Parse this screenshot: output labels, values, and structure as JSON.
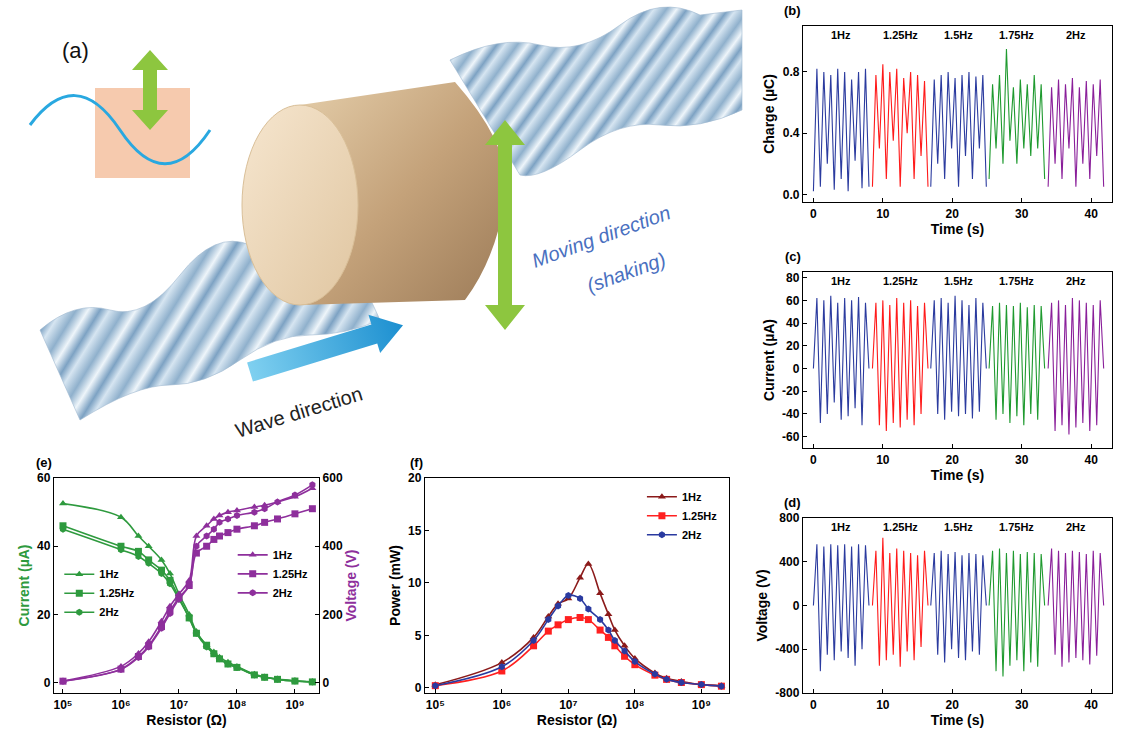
{
  "diagram": {
    "panel": "(a)",
    "moving_label": [
      "Moving direction",
      "(shaking)"
    ],
    "wave_label": "Wave direction"
  },
  "chart_data": [
    {
      "panel": "(b)",
      "type": "line",
      "x_label": "Time (s)",
      "y_label": "Charge (µC)",
      "grid": false,
      "xlim": [
        -1.5,
        43
      ],
      "xticks": [
        0,
        10,
        20,
        30,
        40
      ],
      "ylim": [
        -0.05,
        1.1
      ],
      "yticks": [
        {
          "value": 0,
          "label": "0.0"
        },
        0.4,
        0.8
      ],
      "series": [
        {
          "name": "1Hz",
          "color": "#2b3b9f",
          "x": [
            0,
            0.5,
            1,
            1.5,
            2,
            2.5,
            3,
            3.5,
            4,
            4.5,
            5,
            5.5,
            6,
            6.5,
            7,
            7.5,
            8
          ],
          "values": [
            0.02,
            0.82,
            0.05,
            0.8,
            0.2,
            0.78,
            0.03,
            0.82,
            0.1,
            0.8,
            0.02,
            0.75,
            0.22,
            0.8,
            0.04,
            0.82,
            0.05
          ]
        },
        {
          "name": "1.25Hz",
          "color": "#ff1a1a",
          "x": [
            8.5,
            9,
            9.5,
            10,
            10.5,
            11,
            11.5,
            12,
            12.5,
            13,
            13.5,
            14,
            14.5,
            15,
            15.5,
            16,
            16.5
          ],
          "values": [
            0.05,
            0.78,
            0.3,
            0.85,
            0.1,
            0.8,
            0.35,
            0.82,
            0.05,
            0.76,
            0.4,
            0.8,
            0.1,
            0.78,
            0.25,
            0.74,
            0.05
          ]
        },
        {
          "name": "1.5Hz",
          "color": "#2b3b9f",
          "x": [
            16.9,
            17.4,
            17.9,
            18.4,
            18.9,
            19.4,
            19.9,
            20.4,
            20.9,
            21.4,
            21.9,
            22.4,
            22.9,
            23.4,
            23.9,
            24.4,
            24.9
          ],
          "values": [
            0.05,
            0.75,
            0.2,
            0.78,
            0.1,
            0.8,
            0.3,
            0.76,
            0.05,
            0.78,
            0.25,
            0.8,
            0.1,
            0.77,
            0.3,
            0.78,
            0.05
          ]
        },
        {
          "name": "1.75Hz",
          "color": "#1f9a2f",
          "x": [
            25.3,
            25.8,
            26.3,
            26.8,
            27.3,
            27.8,
            28.3,
            28.8,
            29.3,
            29.8,
            30.3,
            30.8,
            31.3,
            31.8,
            32.3,
            32.8,
            33.3
          ],
          "values": [
            0.1,
            0.72,
            0.3,
            0.78,
            0.2,
            0.95,
            0.35,
            0.7,
            0.2,
            0.75,
            0.3,
            0.72,
            0.25,
            0.78,
            0.3,
            0.72,
            0.1
          ]
        },
        {
          "name": "2Hz",
          "color": "#8a1f9a",
          "x": [
            33.8,
            34.3,
            34.8,
            35.3,
            35.8,
            36.3,
            36.8,
            37.3,
            37.8,
            38.3,
            38.8,
            39.3,
            39.8,
            40.3,
            40.8,
            41.3,
            41.8
          ],
          "values": [
            0.05,
            0.7,
            0.2,
            0.75,
            0.1,
            0.72,
            0.3,
            0.76,
            0.05,
            0.7,
            0.2,
            0.74,
            0.1,
            0.72,
            0.25,
            0.75,
            0.05
          ]
        }
      ]
    },
    {
      "panel": "(c)",
      "type": "line",
      "x_label": "Time (s)",
      "y_label": "Current (µA)",
      "grid": false,
      "xlim": [
        -1.5,
        43
      ],
      "xticks": [
        0,
        10,
        20,
        30,
        40
      ],
      "ylim": [
        -70,
        85
      ],
      "yticks": [
        -60,
        -40,
        -20,
        0,
        20,
        40,
        60,
        80
      ],
      "series": [
        {
          "name": "1Hz",
          "color": "#2b3b9f",
          "x": [
            0,
            0.5,
            1,
            1.5,
            2,
            2.5,
            3,
            3.5,
            4,
            4.5,
            5,
            5.5,
            6,
            6.5,
            7,
            7.5,
            8
          ],
          "values": [
            0,
            62,
            -48,
            60,
            -40,
            64,
            -30,
            58,
            -45,
            62,
            -42,
            60,
            -35,
            63,
            -50,
            58,
            0
          ]
        },
        {
          "name": "1.25Hz",
          "color": "#ff1a1a",
          "x": [
            8.5,
            9,
            9.5,
            10,
            10.5,
            11,
            11.5,
            12,
            12.5,
            13,
            13.5,
            14,
            14.5,
            15,
            15.5,
            16,
            16.5
          ],
          "values": [
            0,
            58,
            -50,
            60,
            -55,
            56,
            -48,
            62,
            -52,
            58,
            -45,
            60,
            -50,
            55,
            -40,
            58,
            0
          ]
        },
        {
          "name": "1.5Hz",
          "color": "#2b3b9f",
          "x": [
            16.9,
            17.4,
            17.9,
            18.4,
            18.9,
            19.4,
            19.9,
            20.4,
            20.9,
            21.4,
            21.9,
            22.4,
            22.9,
            23.4,
            23.9,
            24.4,
            24.9
          ],
          "values": [
            0,
            60,
            -40,
            62,
            -45,
            58,
            -38,
            64,
            -42,
            60,
            -40,
            56,
            -44,
            62,
            -38,
            58,
            0
          ]
        },
        {
          "name": "1.75Hz",
          "color": "#1f9a2f",
          "x": [
            25.3,
            25.8,
            26.3,
            26.8,
            27.3,
            27.8,
            28.3,
            28.8,
            29.3,
            29.8,
            30.3,
            30.8,
            31.3,
            31.8,
            32.3,
            32.8,
            33.3
          ],
          "values": [
            0,
            55,
            -45,
            58,
            -40,
            56,
            -48,
            55,
            -42,
            58,
            -50,
            54,
            -40,
            56,
            -45,
            55,
            0
          ]
        },
        {
          "name": "2Hz",
          "color": "#8a1f9a",
          "x": [
            33.8,
            34.3,
            34.8,
            35.3,
            35.8,
            36.3,
            36.8,
            37.3,
            37.8,
            38.3,
            38.8,
            39.3,
            39.8,
            40.3,
            40.8,
            41.3,
            41.8
          ],
          "values": [
            0,
            58,
            -55,
            60,
            -50,
            56,
            -58,
            62,
            -52,
            60,
            -48,
            58,
            -55,
            56,
            -50,
            60,
            0
          ]
        }
      ]
    },
    {
      "panel": "(d)",
      "type": "line",
      "x_label": "Time (s)",
      "y_label": "Voltage (V)",
      "grid": false,
      "xlim": [
        -1.5,
        43
      ],
      "xticks": [
        0,
        10,
        20,
        30,
        40
      ],
      "ylim": [
        -800,
        800
      ],
      "yticks": [
        -800,
        -400,
        0,
        400,
        800
      ],
      "series": [
        {
          "name": "1Hz",
          "color": "#2b3b9f",
          "x": [
            0,
            0.5,
            1,
            1.5,
            2,
            2.5,
            3,
            3.5,
            4,
            4.5,
            5,
            5.5,
            6,
            6.5,
            7,
            7.5,
            8
          ],
          "values": [
            0,
            560,
            -600,
            540,
            -450,
            560,
            -500,
            550,
            -420,
            560,
            -480,
            540,
            -550,
            560,
            -400,
            550,
            0
          ]
        },
        {
          "name": "1.25Hz",
          "color": "#ff1a1a",
          "x": [
            8.5,
            9,
            9.5,
            10,
            10.5,
            11,
            11.5,
            12,
            12.5,
            13,
            13.5,
            14,
            14.5,
            15,
            15.5,
            16,
            16.5
          ],
          "values": [
            0,
            500,
            -550,
            620,
            -500,
            480,
            -450,
            520,
            -560,
            500,
            -420,
            480,
            -500,
            460,
            -380,
            500,
            0
          ]
        },
        {
          "name": "1.5Hz",
          "color": "#2b3b9f",
          "x": [
            16.9,
            17.4,
            17.9,
            18.4,
            18.9,
            19.4,
            19.9,
            20.4,
            20.9,
            21.4,
            21.9,
            22.4,
            22.9,
            23.4,
            23.9,
            24.4,
            24.9
          ],
          "values": [
            0,
            480,
            -450,
            500,
            -520,
            470,
            -400,
            490,
            -480,
            460,
            -500,
            480,
            -420,
            470,
            -450,
            460,
            0
          ]
        },
        {
          "name": "1.75Hz",
          "color": "#1f9a2f",
          "x": [
            25.3,
            25.8,
            26.3,
            26.8,
            27.3,
            27.8,
            28.3,
            28.8,
            29.3,
            29.8,
            30.3,
            30.8,
            31.3,
            31.8,
            32.3,
            32.8,
            33.3
          ],
          "values": [
            0,
            500,
            -600,
            520,
            -650,
            480,
            -550,
            500,
            -500,
            470,
            -600,
            490,
            -520,
            480,
            -560,
            470,
            0
          ]
        },
        {
          "name": "2Hz",
          "color": "#8a1f9a",
          "x": [
            33.8,
            34.3,
            34.8,
            35.3,
            35.8,
            36.3,
            36.8,
            37.3,
            37.8,
            38.3,
            38.8,
            39.3,
            39.8,
            40.3,
            40.8,
            41.3,
            41.8
          ],
          "values": [
            0,
            520,
            -450,
            500,
            -560,
            480,
            -520,
            500,
            -480,
            490,
            -500,
            470,
            -540,
            500,
            -460,
            480,
            0
          ]
        }
      ]
    },
    {
      "panel": "(e)",
      "type": "line",
      "log": "x",
      "grid": false,
      "legend": "inside",
      "x_label": "Resistor (Ω)",
      "y_label": "Current (µA)",
      "y2_label": "Voltage (V)",
      "x": [
        100000,
        1000000,
        2000000,
        3000000,
        5000000,
        7000000,
        10000000,
        15000000,
        20000000,
        30000000,
        40000000,
        50000000,
        70000000,
        100000000,
        200000000,
        300000000,
        500000000,
        1000000000,
        2000000000
      ],
      "xlim": [
        70000,
        2600000000
      ],
      "xticks": [
        {
          "value": 100000,
          "label": "10⁵"
        },
        {
          "value": 1000000,
          "label": "10⁶"
        },
        {
          "value": 10000000,
          "label": "10⁷"
        },
        {
          "value": 100000000,
          "label": "10⁸"
        },
        {
          "value": 1000000000,
          "label": "10⁹"
        }
      ],
      "ylim": [
        -3,
        60
      ],
      "yticks": [
        0,
        20,
        40,
        60
      ],
      "y2lim": [
        -30,
        600
      ],
      "y2ticks": [
        0,
        200,
        400,
        600
      ],
      "series": [
        {
          "name": "1Hz",
          "color": "#2e9a3e",
          "marker": "triangle",
          "line_style": "solid",
          "values": [
            52.5,
            48.5,
            43,
            40,
            36,
            32,
            26,
            20,
            15,
            11,
            9,
            7.5,
            6,
            4.8,
            2.5,
            1.7,
            1.1,
            0.6,
            0.3
          ]
        },
        {
          "name": "1.25Hz",
          "color": "#2e9a3e",
          "marker": "square",
          "line_style": "solid",
          "values": [
            46,
            40,
            38.5,
            36,
            33,
            30,
            25,
            19,
            14.5,
            11,
            8.5,
            7,
            5.5,
            4.5,
            2.3,
            1.6,
            1,
            0.5,
            0.25
          ]
        },
        {
          "name": "2Hz",
          "color": "#2e9a3e",
          "marker": "hexagon",
          "line_style": "solid",
          "values": [
            45,
            39,
            37,
            35,
            32,
            29,
            24.5,
            19,
            14.5,
            10.5,
            8.5,
            7,
            5.5,
            4.5,
            2.3,
            1.6,
            1,
            0.5,
            0.25
          ]
        },
        {
          "name": "1Hz",
          "color": "#8e2f9c",
          "marker": "triangle",
          "line_style": "solid",
          "axis": "y2",
          "values": [
            5,
            48,
            86,
            120,
            180,
            224,
            260,
            300,
            430,
            460,
            480,
            490,
            500,
            505,
            515,
            520,
            530,
            545,
            570
          ]
        },
        {
          "name": "1.25Hz",
          "color": "#8e2f9c",
          "marker": "square",
          "line_style": "solid",
          "axis": "y2",
          "values": [
            4.6,
            40,
            77,
            108,
            165,
            210,
            250,
            285,
            380,
            400,
            420,
            430,
            440,
            450,
            460,
            470,
            480,
            495,
            510
          ]
        },
        {
          "name": "2Hz",
          "color": "#8e2f9c",
          "marker": "hexagon",
          "line_style": "solid",
          "axis": "y2",
          "values": [
            4.5,
            39,
            74,
            105,
            160,
            203,
            245,
            285,
            400,
            430,
            450,
            470,
            480,
            490,
            500,
            510,
            530,
            550,
            580
          ]
        }
      ]
    },
    {
      "panel": "(f)",
      "type": "line",
      "log": "x",
      "grid": false,
      "legend": "top right",
      "x_label": "Resistor (Ω)",
      "y_label": "Power (mW)",
      "x": [
        100000,
        1000000,
        3000000,
        5000000,
        7000000,
        10000000,
        15000000,
        20000000,
        30000000,
        40000000,
        50000000,
        70000000,
        100000000,
        200000000,
        300000000,
        500000000,
        1000000000,
        2000000000
      ],
      "xlim": [
        70000,
        2600000000
      ],
      "xticks": [
        {
          "value": 100000,
          "label": "10⁵"
        },
        {
          "value": 1000000,
          "label": "10⁶"
        },
        {
          "value": 10000000,
          "label": "10⁷"
        },
        {
          "value": 100000000,
          "label": "10⁸"
        },
        {
          "value": 1000000000,
          "label": "10⁹"
        }
      ],
      "ylim": [
        -0.5,
        20
      ],
      "yticks": [
        0,
        5,
        10,
        15,
        20
      ],
      "series": [
        {
          "name": "1Hz",
          "color": "#8b1a1a",
          "marker": "triangle",
          "line_style": "solid",
          "values": [
            0.28,
            2.4,
            4.8,
            6.8,
            8,
            8.5,
            10.5,
            11.8,
            9,
            7,
            5.5,
            4,
            2.8,
            1.4,
            0.9,
            0.6,
            0.3,
            0.2
          ]
        },
        {
          "name": "1.25Hz",
          "color": "#ff2020",
          "marker": "square",
          "line_style": "solid",
          "values": [
            0.2,
            1.6,
            4,
            5.4,
            6,
            6.5,
            6.7,
            6.5,
            5.5,
            4.8,
            4,
            3,
            2.2,
            1.2,
            0.8,
            0.5,
            0.3,
            0.15
          ]
        },
        {
          "name": "2Hz",
          "color": "#2a3aa0",
          "marker": "hexagon",
          "line_style": "solid",
          "values": [
            0.2,
            2,
            4.5,
            6.5,
            7.8,
            8.8,
            8.5,
            7.5,
            6.5,
            5.5,
            4.5,
            3.5,
            2.5,
            1.3,
            0.8,
            0.5,
            0.3,
            0.15
          ]
        }
      ]
    }
  ]
}
